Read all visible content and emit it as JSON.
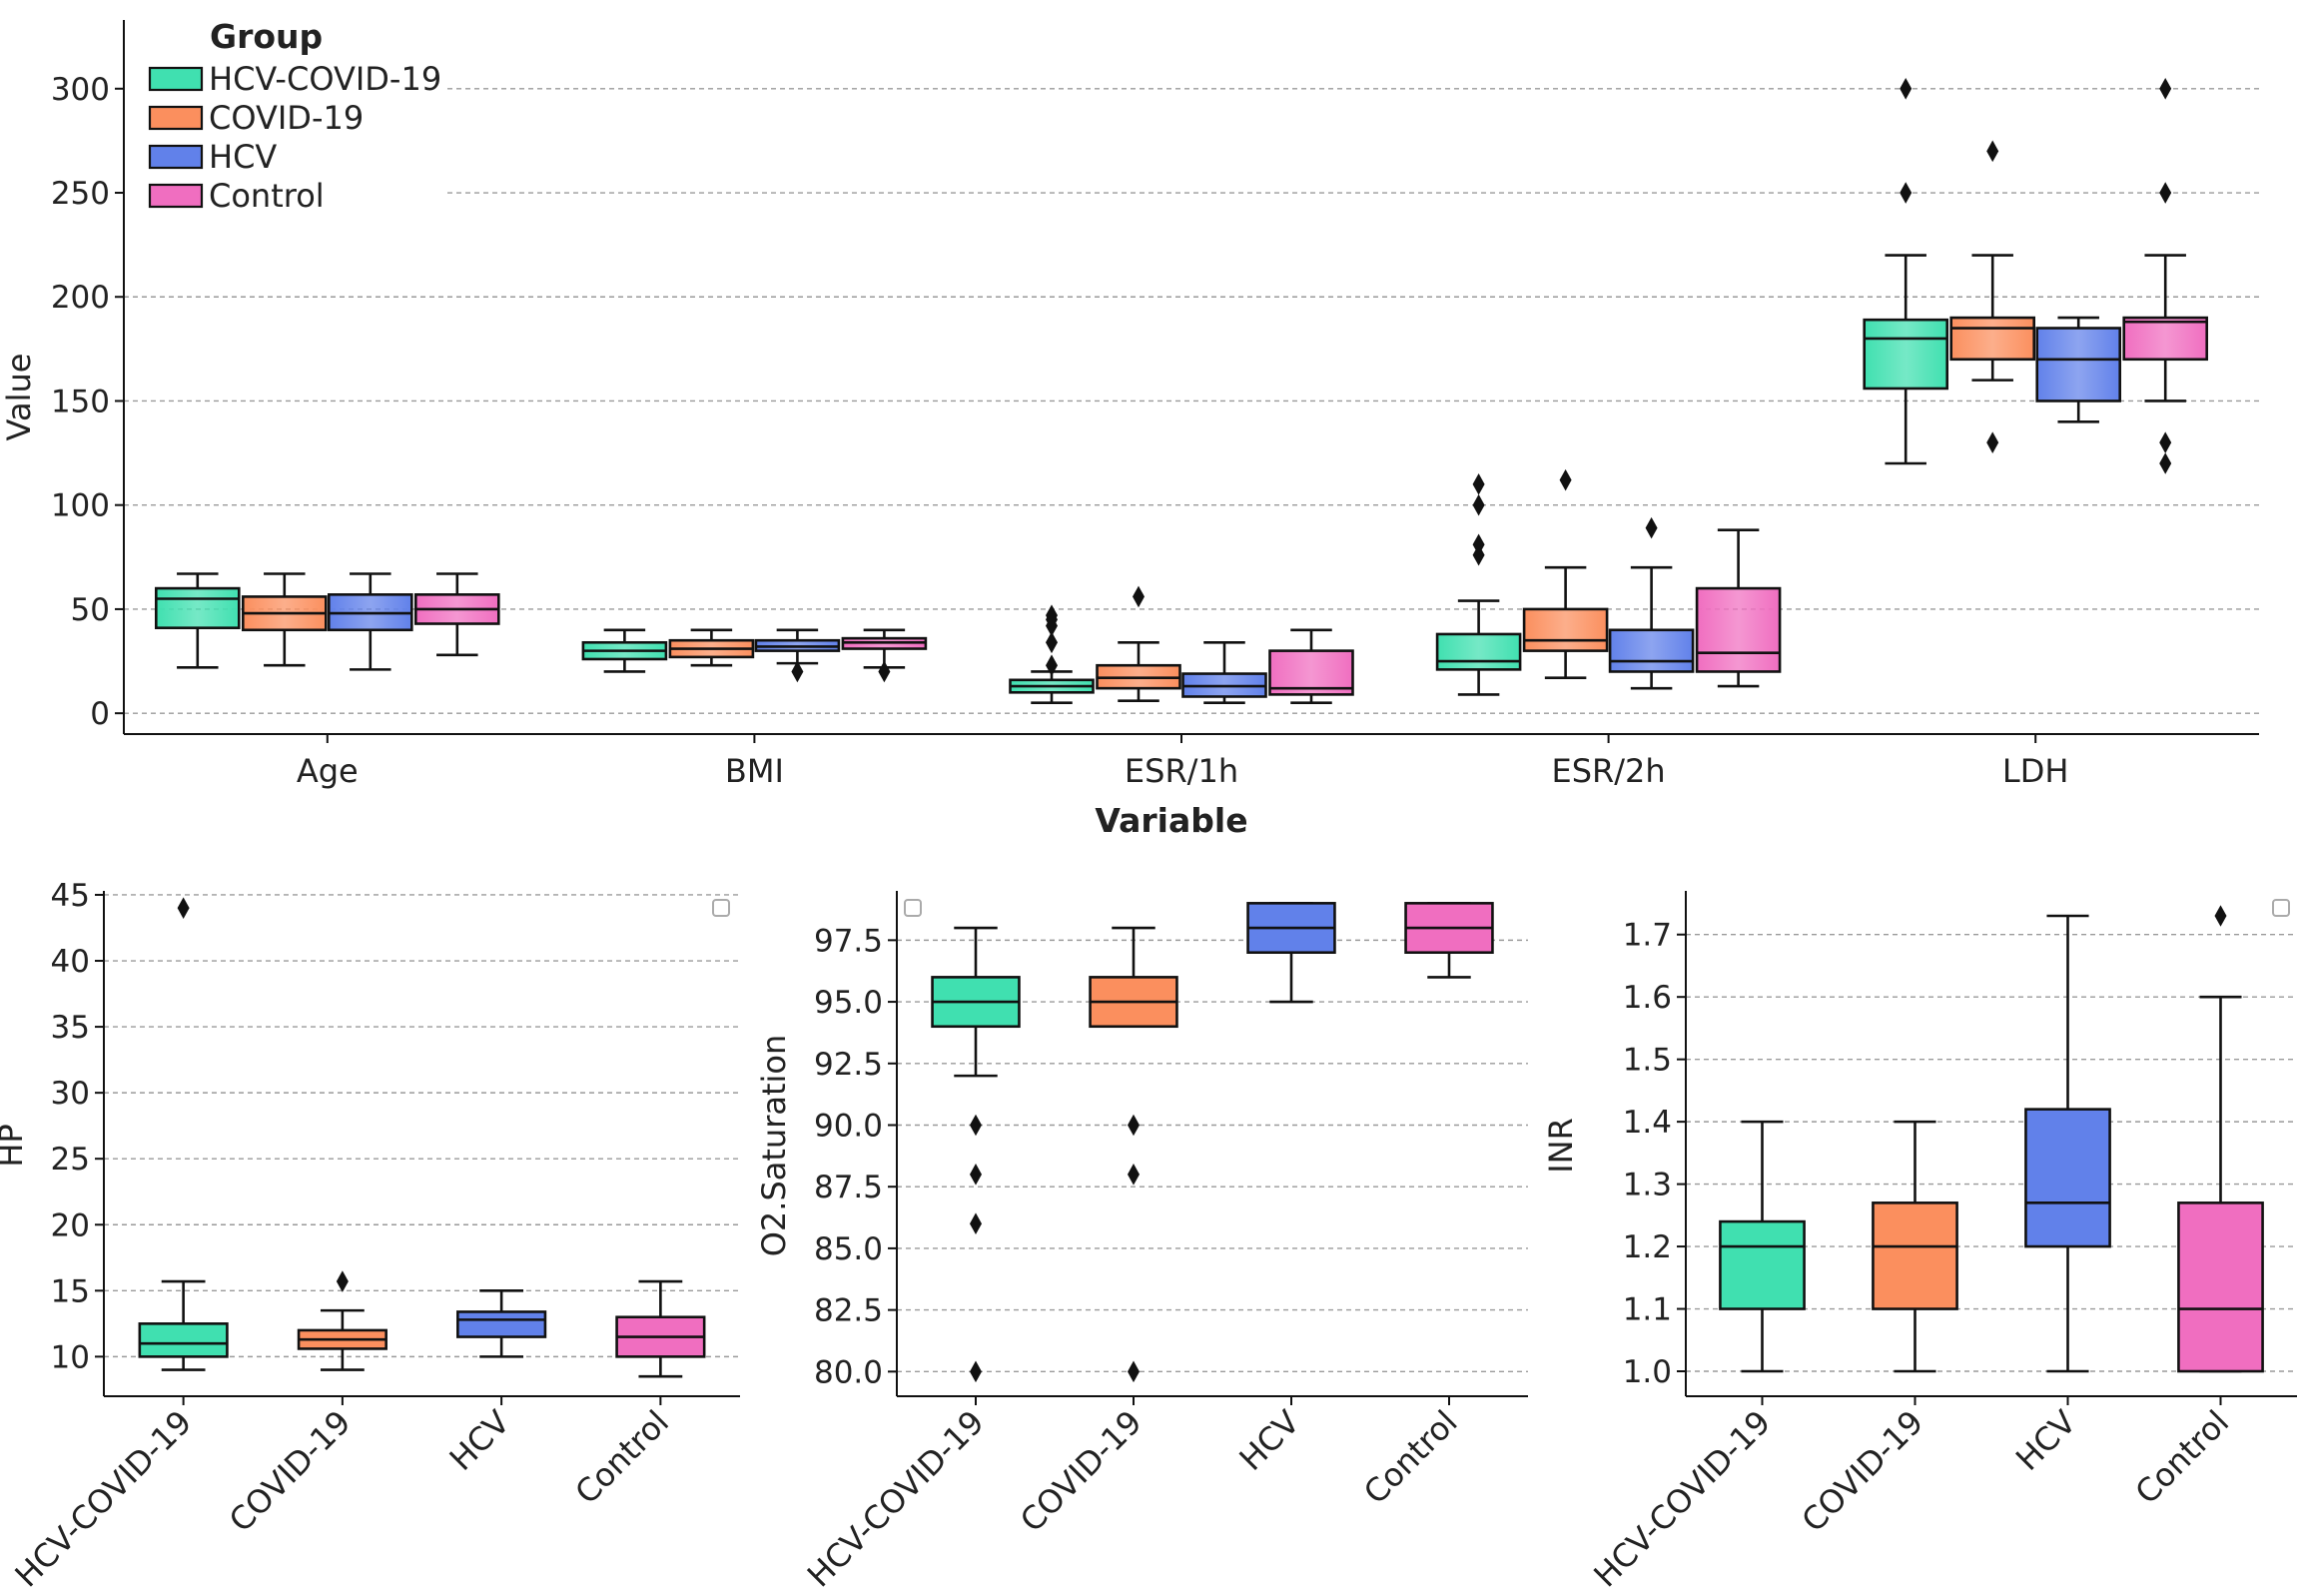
{
  "colors": {
    "HCV-COVID-19": "#40e0b0",
    "COVID-19": "#fb8f5e",
    "HCV": "#6181ea",
    "Control": "#f06ec0"
  },
  "chart_data": [
    {
      "type": "box",
      "id": "main",
      "title": "",
      "xlabel": "Variable",
      "ylabel": "Value",
      "ylim": [
        -10,
        333
      ],
      "yticks": [
        0,
        50,
        100,
        150,
        200,
        250,
        300
      ],
      "ytick_labels": [
        "0",
        "50",
        "100",
        "150",
        "200",
        "250",
        "300"
      ],
      "grid": true,
      "categories": [
        "Age",
        "BMI",
        "ESR/1h",
        "ESR/2h",
        "LDH"
      ],
      "legend": {
        "title": "Group",
        "placement": "top-left",
        "items": [
          "HCV-COVID-19",
          "COVID-19",
          "HCV",
          "Control"
        ]
      },
      "series": [
        {
          "name": "HCV-COVID-19",
          "boxes": [
            {
              "low": 22,
              "q1": 41,
              "median": 55,
              "q3": 60,
              "high": 67,
              "outliers": []
            },
            {
              "low": 20,
              "q1": 26,
              "median": 30,
              "q3": 34,
              "high": 40,
              "outliers": []
            },
            {
              "low": 5,
              "q1": 10,
              "median": 13,
              "q3": 16,
              "high": 20,
              "outliers": [
                23,
                34,
                42,
                45,
                47
              ]
            },
            {
              "low": 9,
              "q1": 21,
              "median": 25,
              "q3": 38,
              "high": 54,
              "outliers": [
                76,
                81,
                100,
                110
              ]
            },
            {
              "low": 120,
              "q1": 156,
              "median": 180,
              "q3": 189,
              "high": 220,
              "outliers": [
                250,
                300
              ]
            }
          ]
        },
        {
          "name": "COVID-19",
          "boxes": [
            {
              "low": 23,
              "q1": 40,
              "median": 48,
              "q3": 56,
              "high": 67,
              "outliers": []
            },
            {
              "low": 23,
              "q1": 27,
              "median": 31,
              "q3": 35,
              "high": 40,
              "outliers": []
            },
            {
              "low": 6,
              "q1": 12,
              "median": 17,
              "q3": 23,
              "high": 34,
              "outliers": [
                56
              ]
            },
            {
              "low": 17,
              "q1": 30,
              "median": 35,
              "q3": 50,
              "high": 70,
              "outliers": [
                112
              ]
            },
            {
              "low": 160,
              "q1": 170,
              "median": 185,
              "q3": 190,
              "high": 220,
              "outliers": [
                130,
                270
              ]
            }
          ]
        },
        {
          "name": "HCV",
          "boxes": [
            {
              "low": 21,
              "q1": 40,
              "median": 48,
              "q3": 57,
              "high": 67,
              "outliers": []
            },
            {
              "low": 24,
              "q1": 30,
              "median": 32,
              "q3": 35,
              "high": 40,
              "outliers": [
                20
              ]
            },
            {
              "low": 5,
              "q1": 8,
              "median": 13,
              "q3": 19,
              "high": 34,
              "outliers": []
            },
            {
              "low": 12,
              "q1": 20,
              "median": 25,
              "q3": 40,
              "high": 70,
              "outliers": [
                89
              ]
            },
            {
              "low": 140,
              "q1": 150,
              "median": 170,
              "q3": 185,
              "high": 190,
              "outliers": []
            }
          ]
        },
        {
          "name": "Control",
          "boxes": [
            {
              "low": 28,
              "q1": 43,
              "median": 50,
              "q3": 57,
              "high": 67,
              "outliers": []
            },
            {
              "low": 22,
              "q1": 31,
              "median": 34,
              "q3": 36,
              "high": 40,
              "outliers": [
                20
              ]
            },
            {
              "low": 5,
              "q1": 9,
              "median": 12,
              "q3": 30,
              "high": 40,
              "outliers": []
            },
            {
              "low": 13,
              "q1": 20,
              "median": 29,
              "q3": 60,
              "high": 88,
              "outliers": []
            },
            {
              "low": 150,
              "q1": 170,
              "median": 188,
              "q3": 190,
              "high": 220,
              "outliers": [
                120,
                130,
                250,
                300
              ]
            }
          ]
        }
      ]
    },
    {
      "type": "box",
      "id": "hp",
      "title": "",
      "xlabel": "",
      "ylabel": "HP",
      "ylim": [
        7,
        45.3
      ],
      "yticks": [
        10,
        15,
        20,
        25,
        30,
        35,
        40,
        45
      ],
      "ytick_labels": [
        "10",
        "15",
        "20",
        "25",
        "30",
        "35",
        "40",
        "45"
      ],
      "grid": true,
      "categories": [
        "HCV-COVID-19",
        "COVID-19",
        "HCV",
        "Control"
      ],
      "boxes": [
        {
          "low": 9,
          "q1": 10,
          "median": 11,
          "q3": 12.5,
          "high": 15.7,
          "outliers": [
            44
          ]
        },
        {
          "low": 9,
          "q1": 10.6,
          "median": 11.3,
          "q3": 12,
          "high": 13.5,
          "outliers": [
            15.7
          ]
        },
        {
          "low": 10,
          "q1": 11.5,
          "median": 12.8,
          "q3": 13.4,
          "high": 15,
          "outliers": []
        },
        {
          "low": 8.5,
          "q1": 10,
          "median": 11.5,
          "q3": 13,
          "high": 15.7,
          "outliers": []
        }
      ]
    },
    {
      "type": "box",
      "id": "o2",
      "title": "",
      "xlabel": "",
      "ylabel": "O2.Saturation",
      "ylim": [
        79,
        99.5
      ],
      "yticks": [
        80.0,
        82.5,
        85.0,
        87.5,
        90.0,
        92.5,
        95.0,
        97.5
      ],
      "ytick_labels": [
        "80.0",
        "82.5",
        "85.0",
        "87.5",
        "90.0",
        "92.5",
        "95.0",
        "97.5"
      ],
      "grid": true,
      "categories": [
        "HCV-COVID-19",
        "COVID-19",
        "HCV",
        "Control"
      ],
      "boxes": [
        {
          "low": 92,
          "q1": 94,
          "median": 95,
          "q3": 96,
          "high": 98,
          "outliers": [
            90,
            88,
            86,
            80
          ]
        },
        {
          "low": 94,
          "q1": 94,
          "median": 95,
          "q3": 96,
          "high": 98,
          "outliers": [
            90,
            88,
            80
          ]
        },
        {
          "low": 95,
          "q1": 97,
          "median": 98,
          "q3": 99,
          "high": 99,
          "outliers": []
        },
        {
          "low": 96,
          "q1": 97,
          "median": 98,
          "q3": 99,
          "high": 99,
          "outliers": []
        }
      ]
    },
    {
      "type": "box",
      "id": "inr",
      "title": "",
      "xlabel": "",
      "ylabel": "INR",
      "ylim": [
        0.96,
        1.77
      ],
      "yticks": [
        1.0,
        1.1,
        1.2,
        1.3,
        1.4,
        1.5,
        1.6,
        1.7
      ],
      "ytick_labels": [
        "1.0",
        "1.1",
        "1.2",
        "1.3",
        "1.4",
        "1.5",
        "1.6",
        "1.7"
      ],
      "grid": true,
      "categories": [
        "HCV-COVID-19",
        "COVID-19",
        "HCV",
        "Control"
      ],
      "boxes": [
        {
          "low": 1.0,
          "q1": 1.1,
          "median": 1.2,
          "q3": 1.24,
          "high": 1.4,
          "outliers": []
        },
        {
          "low": 1.0,
          "q1": 1.1,
          "median": 1.2,
          "q3": 1.27,
          "high": 1.4,
          "outliers": []
        },
        {
          "low": 1.0,
          "q1": 1.2,
          "median": 1.27,
          "q3": 1.42,
          "high": 1.73,
          "outliers": []
        },
        {
          "low": 1.0,
          "q1": 1.0,
          "median": 1.1,
          "q3": 1.27,
          "high": 1.6,
          "outliers": [
            1.73
          ]
        }
      ]
    }
  ]
}
